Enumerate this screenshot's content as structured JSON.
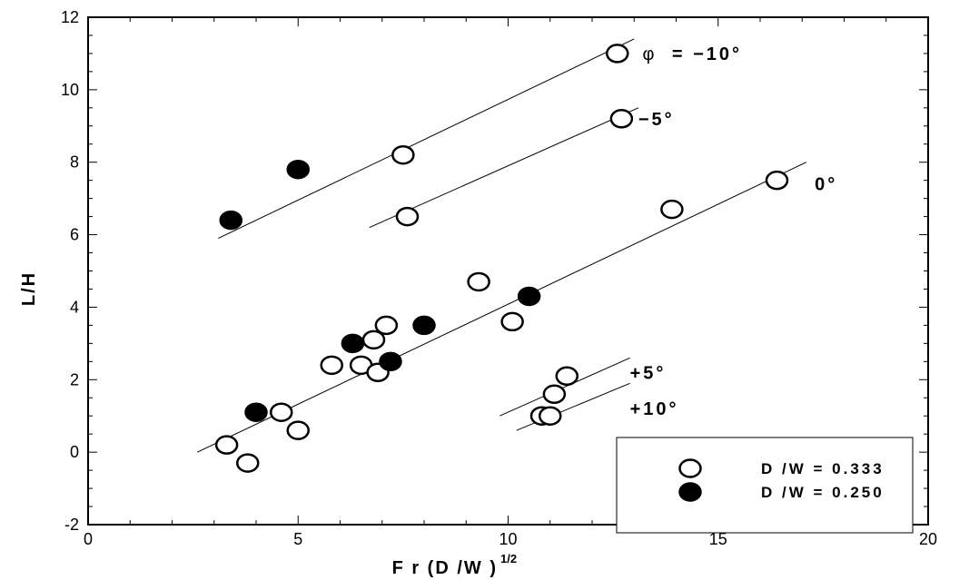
{
  "chart_data": {
    "type": "scatter",
    "xlabel": "F r (D /W )",
    "xlabel_sup": "1/2",
    "ylabel": "L/H",
    "xlim": [
      0,
      20
    ],
    "ylim": [
      -2,
      12
    ],
    "x_ticks": [
      0,
      5,
      10,
      15,
      20
    ],
    "y_ticks": [
      -2,
      0,
      2,
      4,
      6,
      8,
      10,
      12
    ],
    "grid": false,
    "legend_position": "bottom-right",
    "series": [
      {
        "name": "D /W  =  0.333",
        "marker": "open-circle",
        "points": [
          [
            12.6,
            11.0
          ],
          [
            12.7,
            9.2
          ],
          [
            7.5,
            8.2
          ],
          [
            7.6,
            6.5
          ],
          [
            16.4,
            7.5
          ],
          [
            13.9,
            6.7
          ],
          [
            9.3,
            4.7
          ],
          [
            10.1,
            3.6
          ],
          [
            7.1,
            3.5
          ],
          [
            6.8,
            3.1
          ],
          [
            5.8,
            2.4
          ],
          [
            6.5,
            2.4
          ],
          [
            6.9,
            2.2
          ],
          [
            4.6,
            1.1
          ],
          [
            5.0,
            0.6
          ],
          [
            3.3,
            0.2
          ],
          [
            3.8,
            -0.3
          ],
          [
            11.4,
            2.1
          ],
          [
            11.1,
            1.6
          ],
          [
            10.8,
            1.0
          ],
          [
            11.0,
            1.0
          ]
        ]
      },
      {
        "name": "D /W  =  0.250",
        "marker": "filled-circle",
        "points": [
          [
            3.4,
            6.4
          ],
          [
            5.0,
            7.8
          ],
          [
            10.5,
            4.3
          ],
          [
            8.0,
            3.5
          ],
          [
            6.3,
            3.0
          ],
          [
            7.2,
            2.5
          ],
          [
            4.0,
            1.1
          ]
        ]
      }
    ],
    "fit_lines": [
      {
        "label": "φ  =  −10°",
        "from": [
          3.1,
          5.9
        ],
        "to": [
          13.0,
          11.4
        ]
      },
      {
        "label": "−5°",
        "from": [
          6.7,
          6.2
        ],
        "to": [
          13.1,
          9.5
        ]
      },
      {
        "label": "0°",
        "from": [
          2.6,
          0.0
        ],
        "to": [
          17.1,
          8.0
        ]
      },
      {
        "label": "+5°",
        "from": [
          9.8,
          1.0
        ],
        "to": [
          12.9,
          2.6
        ]
      },
      {
        "label": "+10°",
        "from": [
          10.2,
          0.6
        ],
        "to": [
          12.9,
          1.9
        ]
      }
    ],
    "annotations": [
      {
        "text": "φ",
        "plain": true,
        "x": 13.2,
        "y": 11.0
      },
      {
        "text": "=  −10°",
        "plain": false,
        "x": 13.9,
        "y": 11.0
      },
      {
        "text": "−5°",
        "plain": false,
        "x": 13.1,
        "y": 9.2
      },
      {
        "text": "0°",
        "plain": false,
        "x": 17.3,
        "y": 7.4
      },
      {
        "text": "+5°",
        "plain": false,
        "x": 12.9,
        "y": 2.2
      },
      {
        "text": "+10°",
        "plain": false,
        "x": 12.9,
        "y": 1.2
      }
    ]
  }
}
